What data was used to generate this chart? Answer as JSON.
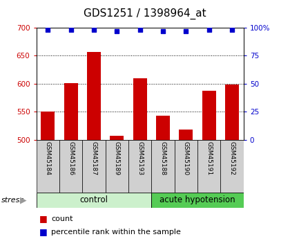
{
  "title": "GDS1251 / 1398964_at",
  "samples": [
    "GSM45184",
    "GSM45186",
    "GSM45187",
    "GSM45189",
    "GSM45193",
    "GSM45188",
    "GSM45190",
    "GSM45191",
    "GSM45192"
  ],
  "counts": [
    550,
    601,
    656,
    507,
    609,
    543,
    518,
    587,
    599
  ],
  "percentiles": [
    98,
    98,
    98,
    97,
    98,
    97,
    97,
    98,
    98
  ],
  "bar_color": "#cc0000",
  "dot_color": "#0000cc",
  "ylim_left": [
    500,
    700
  ],
  "ylim_right": [
    0,
    100
  ],
  "yticks_left": [
    500,
    550,
    600,
    650,
    700
  ],
  "yticks_right": [
    0,
    25,
    50,
    75,
    100
  ],
  "ylabel_left_color": "#cc0000",
  "ylabel_right_color": "#0000cc",
  "tick_area_color": "#d0d0d0",
  "grid_color": "#000000",
  "title_fontsize": 11,
  "tick_fontsize": 7.5,
  "label_fontsize": 6.5,
  "legend_fontsize": 8,
  "group_fontsize": 8.5,
  "control_color": "#ccf0cc",
  "acute_color": "#55cc55",
  "stress_arrow_color": "#999999",
  "n_control": 5,
  "n_acute": 4
}
